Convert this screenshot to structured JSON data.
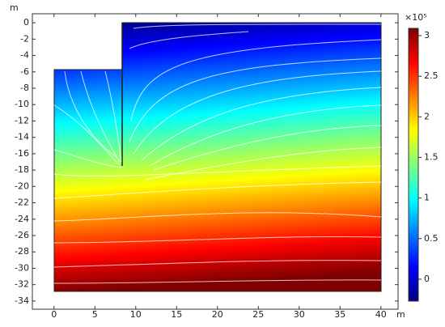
{
  "chart_data": {
    "type": "field",
    "x_label": "m",
    "y_label": "m",
    "xlim": [
      -2.65,
      42.1
    ],
    "ylim": [
      -35,
      1.1
    ],
    "xticks": [
      0,
      5,
      10,
      15,
      20,
      25,
      30,
      35,
      40
    ],
    "yticks": [
      0,
      -2,
      -4,
      -6,
      -8,
      -10,
      -12,
      -14,
      -16,
      -18,
      -20,
      -22,
      -24,
      -26,
      -28,
      -30,
      -32,
      -34
    ],
    "grid": false,
    "colorbar": {
      "label": "×10⁵",
      "lim": [
        -0.27,
        3.09
      ],
      "ticks": [
        0,
        0.5,
        1,
        1.5,
        2,
        2.5,
        3
      ],
      "colors": [
        "#00007f",
        "#0000ff",
        "#007fff",
        "#00ffff",
        "#7fff7f",
        "#ffff00",
        "#ff7f00",
        "#ff0000",
        "#7f0000"
      ]
    }
  }
}
